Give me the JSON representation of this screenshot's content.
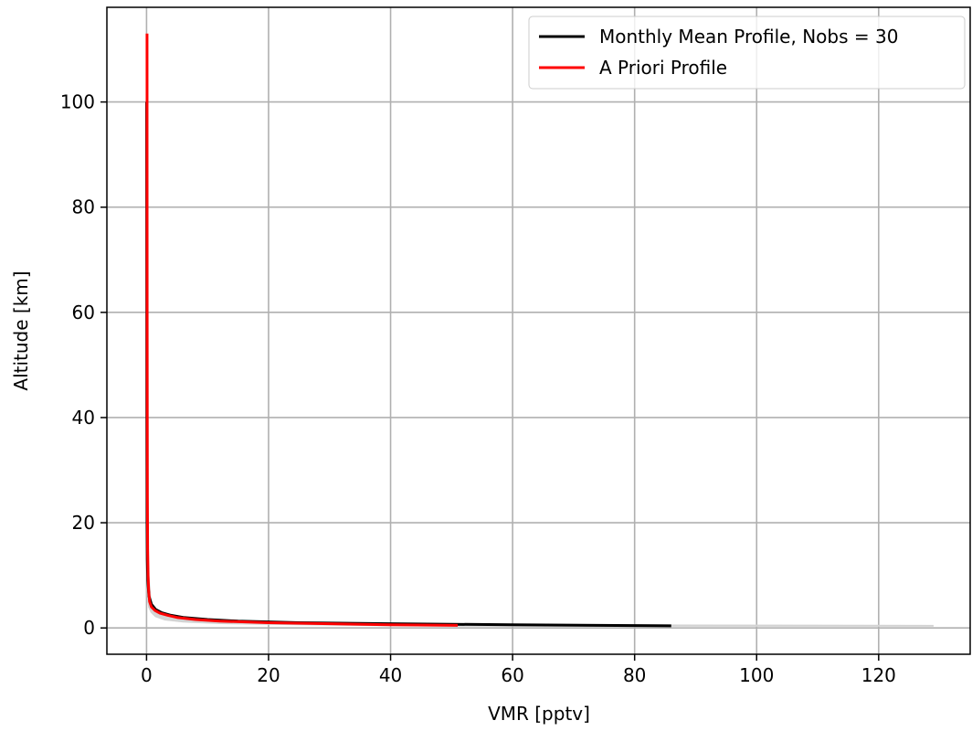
{
  "chart_data": {
    "type": "line",
    "xlabel": "VMR [pptv]",
    "ylabel": "Altitude [km]",
    "xlim": [
      -6.5,
      135
    ],
    "ylim": [
      -5,
      118
    ],
    "xticks": [
      0,
      20,
      40,
      60,
      80,
      100,
      120
    ],
    "yticks": [
      0,
      20,
      40,
      60,
      80,
      100
    ],
    "grid": true,
    "legend_position": "top-right",
    "envelope": {
      "color": "#d3d3d3",
      "x_upper": [
        129,
        80,
        50,
        30,
        15,
        8,
        4,
        2,
        1,
        0.6,
        0.3,
        0.2
      ],
      "x_lower": [
        60,
        40,
        25,
        12,
        6,
        3,
        1.5,
        0.8,
        0.4,
        0.2,
        0.1,
        0.05
      ],
      "y": [
        0.4,
        0.5,
        0.7,
        0.9,
        1.2,
        1.6,
        2.2,
        3,
        4,
        6,
        10,
        14
      ]
    },
    "series": [
      {
        "name": "Monthly Mean Profile, Nobs = 30",
        "color": "#000000",
        "x": [
          86,
          60,
          40,
          25,
          15,
          10,
          6,
          4,
          2.5,
          1.5,
          0.8,
          0.4,
          0.2,
          0.12,
          0.08,
          0.05,
          0.04,
          0.03,
          0.02
        ],
        "y": [
          0.4,
          0.6,
          0.8,
          1.0,
          1.3,
          1.6,
          2.0,
          2.4,
          2.9,
          3.5,
          4.5,
          6.0,
          9.0,
          13,
          20,
          40,
          60,
          80,
          100
        ]
      },
      {
        "name": "A Priori Profile",
        "color": "#ff0000",
        "x": [
          51,
          40,
          30,
          20,
          12,
          8,
          5,
          3.5,
          2.2,
          1.4,
          0.8,
          0.5,
          0.35,
          0.25,
          0.18,
          0.14,
          0.12,
          0.1,
          0.09,
          0.08
        ],
        "y": [
          0.5,
          0.6,
          0.8,
          1.0,
          1.3,
          1.6,
          2.0,
          2.4,
          2.8,
          3.3,
          4.0,
          5.0,
          7.0,
          10,
          15,
          25,
          40,
          60,
          85,
          113
        ]
      }
    ]
  }
}
